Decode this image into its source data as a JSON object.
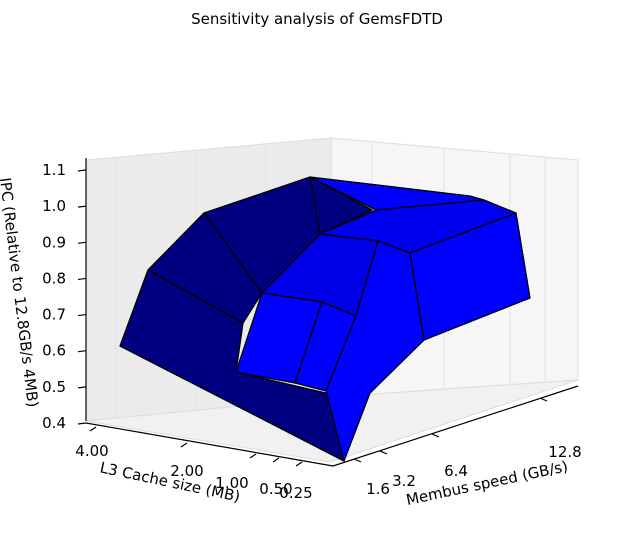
{
  "chart_data": {
    "type": "surface3d",
    "title": "Sensitivity analysis of GemsFDTD",
    "xlabel": "Membus speed (GB/s)",
    "ylabel": "L3 Cache size (MB)",
    "zlabel": "IPC (Relative to 12.8GB/s 4MB)",
    "x_ticks": [
      "1.6",
      "3.2",
      "6.4",
      "12.8"
    ],
    "y_ticks": [
      "0.25",
      "0.50",
      "1.00",
      "2.00",
      "4.00"
    ],
    "z_ticks": [
      "0.4",
      "0.5",
      "0.6",
      "0.7",
      "0.8",
      "0.9",
      "1.0",
      "1.1"
    ],
    "zlim": [
      0.4,
      1.1
    ],
    "grid": true,
    "colors": {
      "dark_face": "#000080",
      "light_face": "#0000ff",
      "edge": "#000000",
      "pane": "#f2f2f2",
      "grid": "#e6e6e6"
    }
  }
}
